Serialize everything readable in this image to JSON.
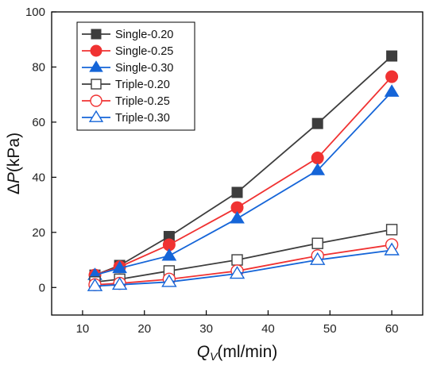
{
  "chart_data": {
    "type": "line",
    "x": [
      12,
      16,
      24,
      35,
      48,
      60
    ],
    "series": [
      {
        "name": "Single-0.20",
        "values": [
          4.5,
          8,
          18.5,
          34.5,
          59.5,
          84
        ],
        "color": "#3d3d3d",
        "marker": "square",
        "filled": true
      },
      {
        "name": "Single-0.25",
        "values": [
          4.5,
          7.5,
          15.5,
          29,
          47,
          76.5
        ],
        "color": "#f03232",
        "marker": "circle",
        "filled": true
      },
      {
        "name": "Single-0.30",
        "values": [
          4.5,
          7,
          11.5,
          25,
          42.5,
          71
        ],
        "color": "#1565d8",
        "marker": "triangle",
        "filled": true
      },
      {
        "name": "Triple-0.20",
        "values": [
          2,
          3,
          6,
          10,
          16,
          21
        ],
        "color": "#3d3d3d",
        "marker": "square",
        "filled": false
      },
      {
        "name": "Triple-0.25",
        "values": [
          1,
          1.5,
          3,
          6,
          11.5,
          15.5
        ],
        "color": "#f03232",
        "marker": "circle",
        "filled": false
      },
      {
        "name": "Triple-0.30",
        "values": [
          0.5,
          1,
          2,
          5,
          10,
          13.5
        ],
        "color": "#1565d8",
        "marker": "triangle",
        "filled": false
      }
    ],
    "xlabel": {
      "main": "Q",
      "sub": "V",
      "unit": "(ml/min)"
    },
    "ylabel": {
      "prefix": "Δ",
      "main": "P",
      "unit": "(kPa)"
    },
    "xlim": [
      5,
      65
    ],
    "ylim": [
      -10,
      100
    ],
    "xticks": [
      10,
      20,
      30,
      40,
      50,
      60
    ],
    "yticks": [
      0,
      20,
      40,
      60,
      80,
      100
    ],
    "grid": false,
    "legend_position": "top-left"
  }
}
